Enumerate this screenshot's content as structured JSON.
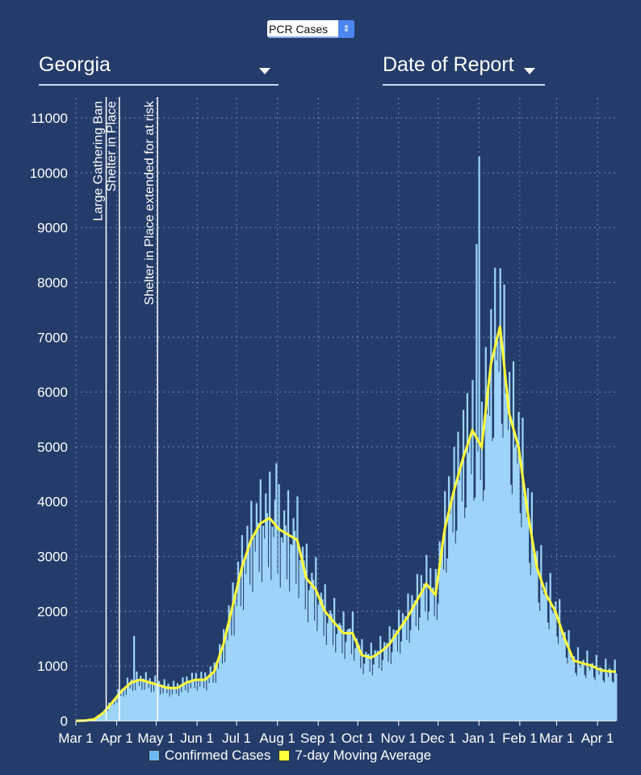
{
  "controls": {
    "metric": "PCR Cases",
    "state": "Georgia",
    "date_mode": "Date of Report"
  },
  "colors": {
    "background": "#243c69",
    "cases": "#9dd4f7",
    "average": "#ffff3a"
  },
  "chart_data": {
    "type": "bar",
    "title": "",
    "ylim": [
      0,
      11000
    ],
    "yticks": [
      0,
      1000,
      2000,
      3000,
      4000,
      5000,
      6000,
      7000,
      8000,
      9000,
      10000,
      11000
    ],
    "xtick_labels": [
      "Mar 1",
      "Apr 1",
      "May 1",
      "Jun 1",
      "Jul 1",
      "Aug 1",
      "Sep 1",
      "Oct 1",
      "Nov 1",
      "Dec 1",
      "Jan 1",
      "Feb 1",
      "Mar 1",
      "Apr 1"
    ],
    "xtick_days": [
      0,
      31,
      61,
      92,
      122,
      153,
      184,
      214,
      245,
      275,
      306,
      337,
      365,
      396
    ],
    "x_range_days": [
      0,
      410
    ],
    "grid": true,
    "legend": {
      "position": "bottom",
      "entries": [
        "Confirmed Cases",
        "7-day Moving Average"
      ]
    },
    "annotations": [
      {
        "label": "Large Gathering Ban",
        "day": 23
      },
      {
        "label": "Shelter in Place",
        "day": 33
      },
      {
        "label": "Shelter in Place extended for at risk",
        "day": 62
      }
    ],
    "series": [
      {
        "name": "7-day Moving Average",
        "type": "line",
        "start_day": 0,
        "step_days": 7,
        "values": [
          0,
          5,
          30,
          150,
          350,
          550,
          700,
          750,
          700,
          650,
          600,
          600,
          700,
          750,
          750,
          900,
          1400,
          2100,
          2800,
          3300,
          3600,
          3700,
          3500,
          3400,
          3300,
          2600,
          2400,
          2000,
          1800,
          1600,
          1600,
          1200,
          1150,
          1250,
          1400,
          1650,
          1900,
          2200,
          2500,
          2300,
          3500,
          4200,
          4800,
          5300,
          5000,
          6500,
          7200,
          5600,
          5000,
          3800,
          2800,
          2300,
          2000,
          1500,
          1100,
          1050,
          1000,
          920,
          900
        ]
      },
      {
        "name": "Confirmed Cases",
        "type": "bar",
        "notable_peaks": [
          {
            "day": 306,
            "value": 10300
          },
          {
            "day": 304,
            "value": 8700
          },
          {
            "day": 152,
            "value": 4700
          },
          {
            "day": 44,
            "value": 1550
          }
        ]
      }
    ]
  }
}
